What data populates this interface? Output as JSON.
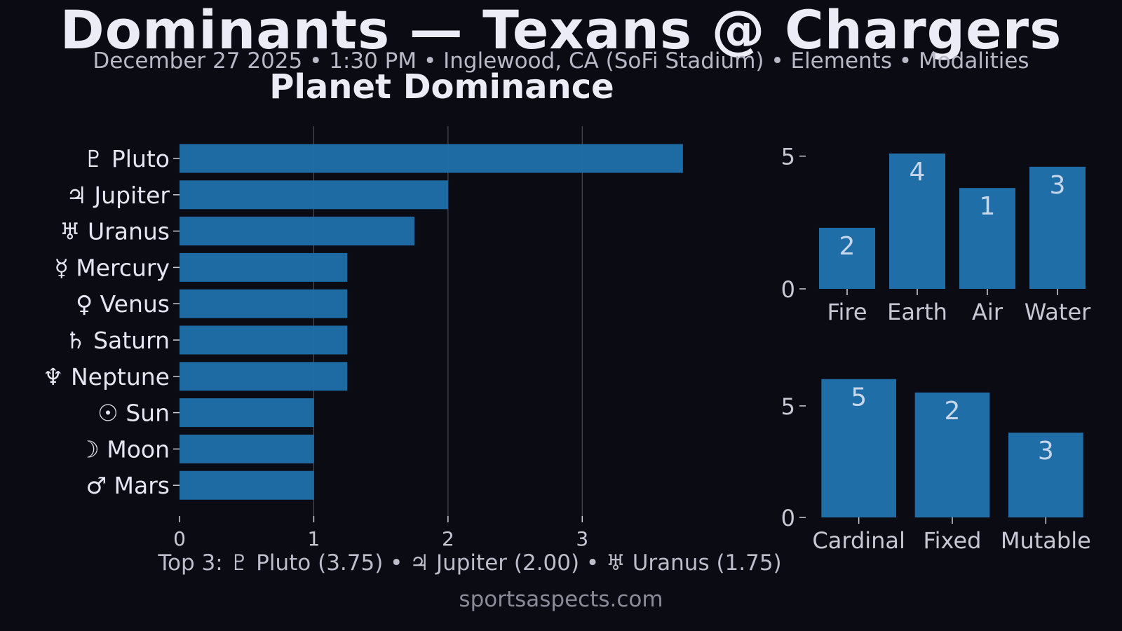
{
  "header": {
    "title": "Dominants — Texans @ Chargers",
    "subtitle": "December 27 2025 • 1:30 PM • Inglewood, CA (SoFi Stadium) • Elements • Modalities"
  },
  "footer": {
    "top3": "Top 3: ♇ Pluto (3.75) • ♃ Jupiter (2.00) • ♅ Uranus (1.75)",
    "site": "sportsaspects.com"
  },
  "colors": {
    "bar": "#1f6ea8",
    "background": "#0b0b14"
  },
  "chart_data": [
    {
      "type": "bar",
      "orientation": "horizontal",
      "title": "Planet Dominance",
      "categories": [
        "♇ Pluto",
        "♃ Jupiter",
        "♅ Uranus",
        "☿ Mercury",
        "♀ Venus",
        "♄ Saturn",
        "♆ Neptune",
        "☉ Sun",
        "☽ Moon",
        "♂ Mars"
      ],
      "values": [
        3.75,
        2.0,
        1.75,
        1.25,
        1.25,
        1.25,
        1.25,
        1.0,
        1.0,
        1.0
      ],
      "xlim": [
        0,
        4.2
      ],
      "xticks": [
        0,
        1,
        2,
        3
      ],
      "grid": "vertical"
    },
    {
      "type": "bar",
      "categories": [
        "Fire",
        "Earth",
        "Air",
        "Water"
      ],
      "values": [
        2.3,
        5.1,
        3.8,
        4.6
      ],
      "bar_labels": [
        "2",
        "4",
        "1",
        "3"
      ],
      "ylim": [
        0,
        5.6
      ],
      "yticks": [
        0,
        5
      ]
    },
    {
      "type": "bar",
      "categories": [
        "Cardinal",
        "Fixed",
        "Mutable"
      ],
      "values": [
        6.2,
        5.6,
        3.8
      ],
      "bar_labels": [
        "5",
        "2",
        "3"
      ],
      "ylim": [
        0,
        6.6
      ],
      "yticks": [
        0,
        5
      ]
    }
  ]
}
